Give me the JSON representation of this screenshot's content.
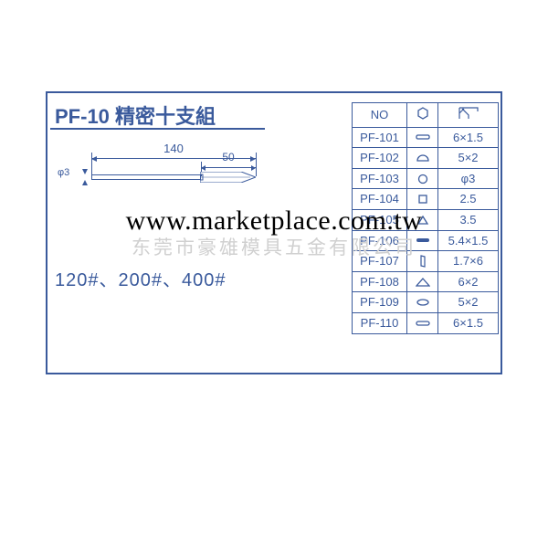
{
  "title": "PF-10 精密十支組",
  "grits_text": "120#、200#、400#",
  "watermark_url": "www.marketplace.com.tw",
  "watermark_gray": "东莞市豪雄模具五金有限公司",
  "dimensions": {
    "length_total": "140",
    "length_tip": "50",
    "diameter": "φ3"
  },
  "colors": {
    "line": "#3a5a9c",
    "bg": "#ffffff",
    "wm_gray": "#d0d0d0",
    "wm_black": "#000000"
  },
  "table": {
    "headers": {
      "no": "NO",
      "shape_icon": "hexagon",
      "size_icon": "angle"
    },
    "rows": [
      {
        "no": "PF-101",
        "shape": "flat-rect",
        "size": "6×1.5"
      },
      {
        "no": "PF-102",
        "shape": "half-round",
        "size": "5×2"
      },
      {
        "no": "PF-103",
        "shape": "round",
        "size": "φ3"
      },
      {
        "no": "PF-104",
        "shape": "square",
        "size": "2.5"
      },
      {
        "no": "PF-105",
        "shape": "triangle",
        "size": "3.5"
      },
      {
        "no": "PF-106",
        "shape": "flat-round",
        "size": "5.4×1.5"
      },
      {
        "no": "PF-107",
        "shape": "knife",
        "size": "1.7×6"
      },
      {
        "no": "PF-108",
        "shape": "tri-outline",
        "size": "6×2"
      },
      {
        "no": "PF-109",
        "shape": "ellipse",
        "size": "5×2"
      },
      {
        "no": "PF-110",
        "shape": "slot",
        "size": "6×1.5"
      }
    ]
  }
}
